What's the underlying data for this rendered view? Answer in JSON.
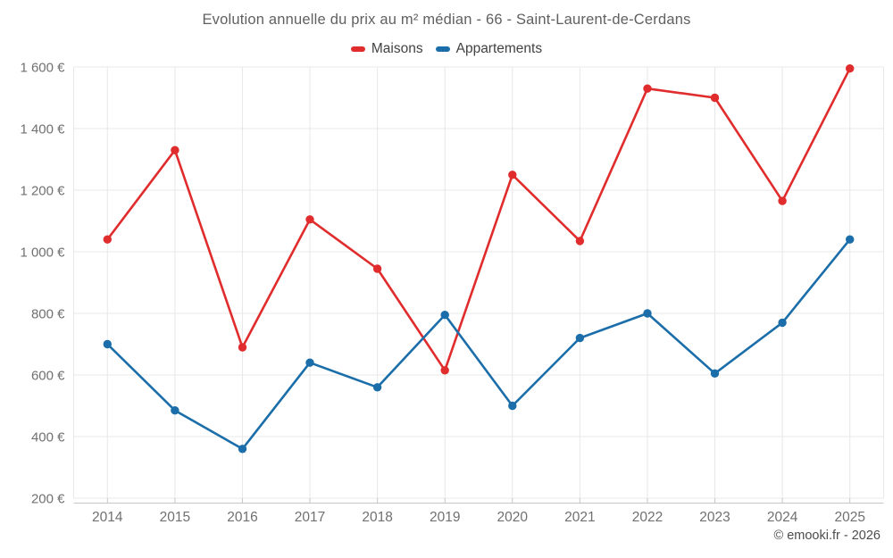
{
  "title": "Evolution annuelle du prix au m² médian - 66 - Saint-Laurent-de-Cerdans",
  "watermark": "© emooki.fr - 2026",
  "colors": {
    "maisons": "#e02c2c",
    "appartements": "#1b6ea9",
    "grid": "#e8e8e8",
    "axis": "#c6c6c6",
    "axis_label": "#707070",
    "background": "#ffffff"
  },
  "legend": {
    "items": [
      {
        "label": "Maisons",
        "color": "#e02c2c"
      },
      {
        "label": "Appartements",
        "color": "#1b6ea9"
      }
    ]
  },
  "chart_data": {
    "type": "line",
    "title": "Evolution annuelle du prix au m² médian - 66 - Saint-Laurent-de-Cerdans",
    "categories": [
      "2014",
      "2015",
      "2016",
      "2017",
      "2018",
      "2019",
      "2020",
      "2021",
      "2022",
      "2023",
      "2024",
      "2025"
    ],
    "series": [
      {
        "name": "Maisons",
        "color": "#e02c2c",
        "values": [
          1040,
          1330,
          690,
          1105,
          945,
          615,
          1250,
          1035,
          1530,
          1500,
          1165,
          1595
        ]
      },
      {
        "name": "Appartements",
        "color": "#1b6ea9",
        "values": [
          700,
          485,
          360,
          640,
          560,
          795,
          500,
          720,
          800,
          605,
          770,
          1040
        ]
      }
    ],
    "xlabel": "",
    "ylabel": "",
    "ylim": [
      200,
      1600
    ],
    "yticks": [
      200,
      400,
      600,
      800,
      1000,
      1200,
      1400,
      1600
    ],
    "ytick_labels": [
      "200 €",
      "400 €",
      "600 €",
      "800 €",
      "1 000 €",
      "1 200 €",
      "1 400 €",
      "1 600 €"
    ],
    "grid": true,
    "legend_position": "top",
    "marker": "circle"
  }
}
